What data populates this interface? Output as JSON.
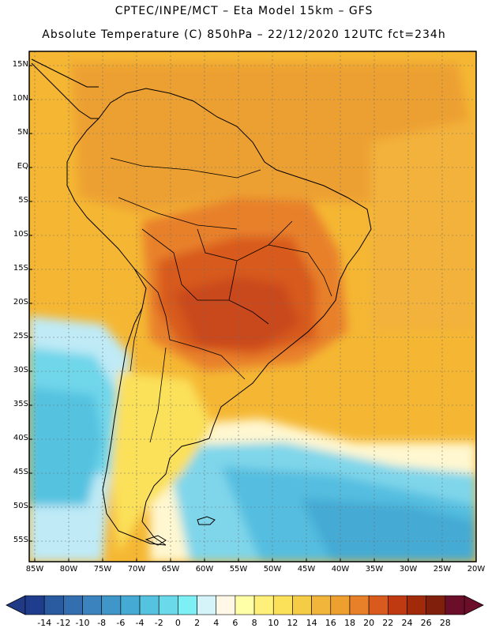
{
  "title_line1": "CPTEC/INPE/MCT –  Eta Model 15km – GFS",
  "title_line2": "Absolute Temperature (C) 850hPa – 22/12/2020 12UTC fct=234h",
  "lat_labels": [
    "15N",
    "10N",
    "5N",
    "EQ",
    "5S",
    "10S",
    "15S",
    "20S",
    "25S",
    "30S",
    "35S",
    "40S",
    "45S",
    "50S",
    "55S"
  ],
  "lon_labels": [
    "85W",
    "80W",
    "75W",
    "70W",
    "65W",
    "60W",
    "55W",
    "50W",
    "45W",
    "40W",
    "35W",
    "30W",
    "25W",
    "20W"
  ],
  "colorbar": {
    "labels": [
      "-14",
      "-12",
      "-10",
      "-8",
      "-6",
      "-4",
      "-2",
      "0",
      "2",
      "4",
      "6",
      "8",
      "10",
      "12",
      "14",
      "16",
      "18",
      "20",
      "22",
      "24",
      "26",
      "28"
    ],
    "colors": [
      "#1f3d8c",
      "#2a5aa0",
      "#336fb0",
      "#3a83be",
      "#3f96c9",
      "#45aad4",
      "#55c2e0",
      "#6ad9ea",
      "#7cf0f4",
      "#d4f4fa",
      "#fff8e6",
      "#ffffa8",
      "#fff07a",
      "#fbe05a",
      "#f5cc45",
      "#f0b53a",
      "#eda030",
      "#e8802a",
      "#d85a1c",
      "#bf3a10",
      "#a02a0a",
      "#80200c",
      "#6a0e2a"
    ]
  },
  "icons": {
    "colorbar_left": "triangle-left-arrow",
    "colorbar_right": "triangle-right-arrow"
  }
}
